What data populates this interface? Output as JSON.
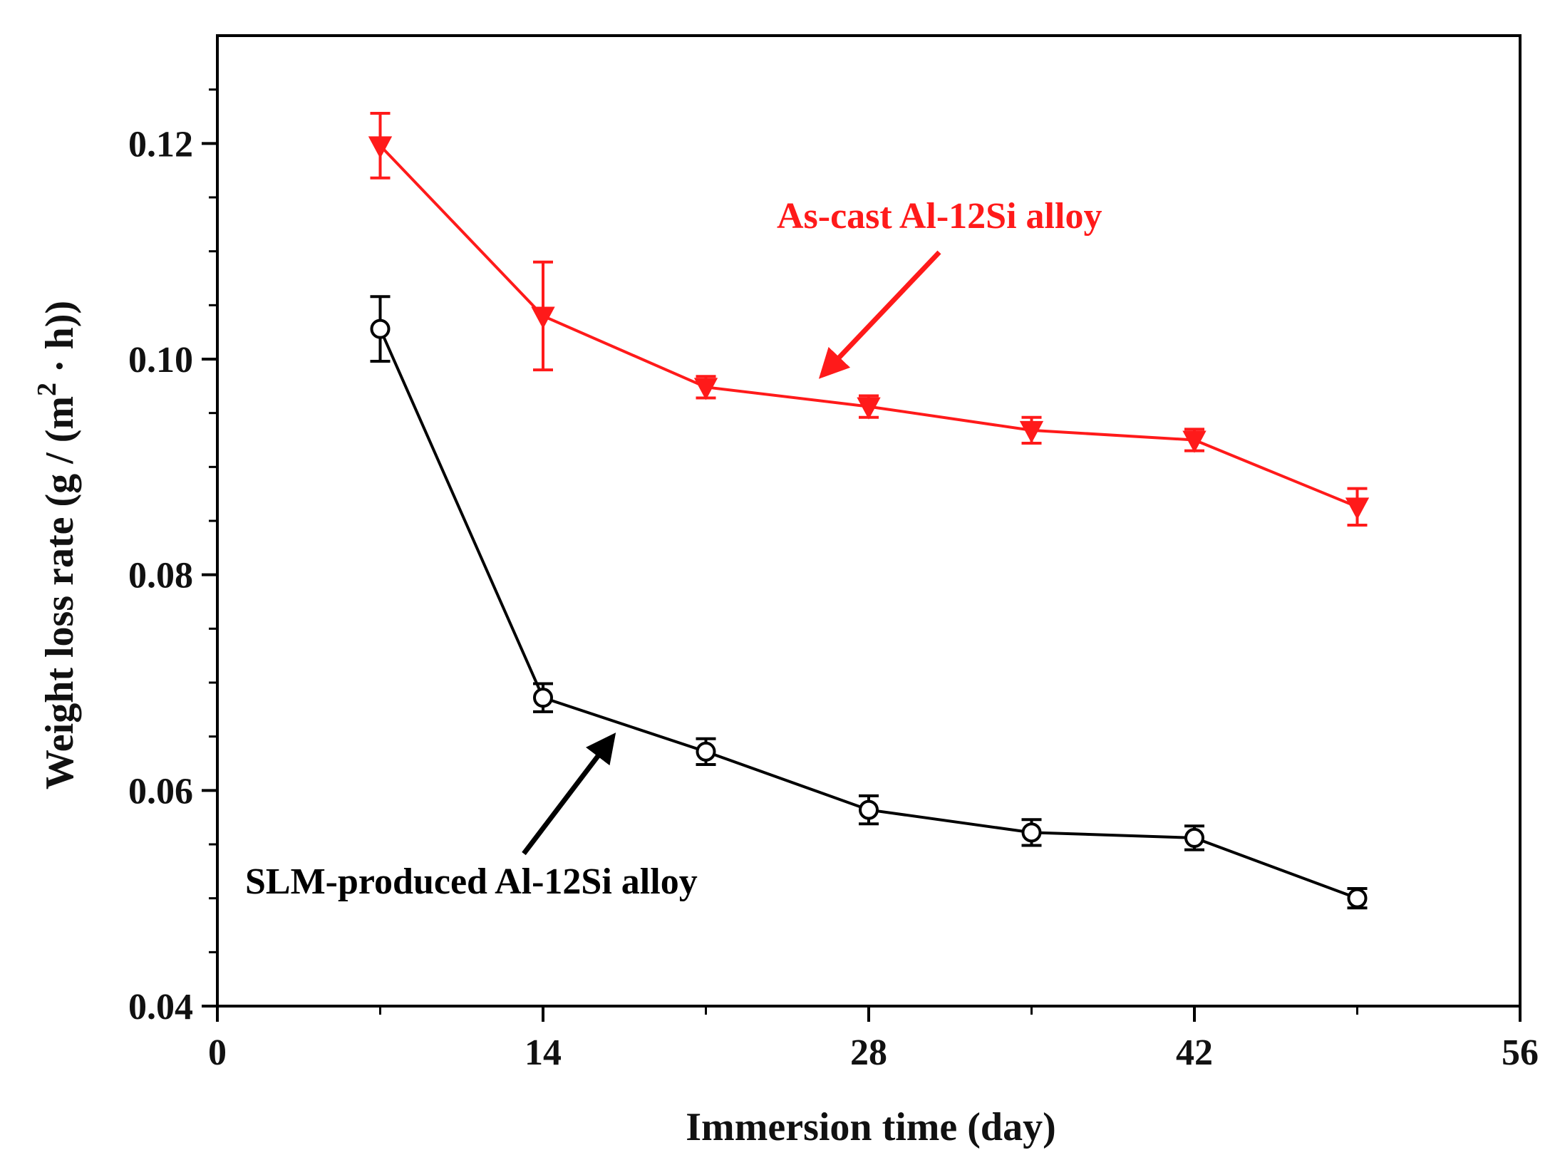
{
  "chart_data": {
    "type": "line",
    "title": "",
    "xlabel": "Immersion time (day)",
    "ylabel": "Weight loss rate (g / (m² · h))",
    "ylabel_parts": {
      "prefix": "Weight loss rate ",
      "unit_start": "(g / (m",
      "superscript": "2",
      "unit_end": " · h))"
    },
    "xlim": [
      0,
      56
    ],
    "ylim": [
      0.04,
      0.13
    ],
    "xticks": [
      0,
      14,
      28,
      42,
      56
    ],
    "xtick_labels": [
      "0",
      "14",
      "28",
      "42",
      "56"
    ],
    "yticks": [
      0.04,
      0.06,
      0.08,
      0.1,
      0.12
    ],
    "ytick_labels": [
      "0.04",
      "0.06",
      "0.08",
      "0.10",
      "0.12"
    ],
    "x_minor_step": 7,
    "y_minor_step": 0.005,
    "grid": false,
    "series": [
      {
        "name": "As-cast Al-12Si alloy",
        "color": "#ff1a1a",
        "marker": "filled-down-triangle",
        "x": [
          7,
          14,
          21,
          28,
          35,
          42,
          49
        ],
        "y": [
          0.1198,
          0.104,
          0.0974,
          0.0956,
          0.0934,
          0.0925,
          0.0863
        ],
        "err": [
          0.003,
          0.005,
          0.001,
          0.001,
          0.0012,
          0.001,
          0.0017
        ]
      },
      {
        "name": "SLM-produced Al-12Si alloy",
        "color": "#000000",
        "marker": "open-circle",
        "x": [
          7,
          14,
          21,
          28,
          35,
          42,
          49
        ],
        "y": [
          0.1028,
          0.0686,
          0.0636,
          0.0582,
          0.0561,
          0.0556,
          0.05
        ],
        "err": [
          0.003,
          0.0013,
          0.0012,
          0.0013,
          0.0012,
          0.0011,
          0.0009
        ]
      }
    ],
    "annotations": [
      {
        "text": "As-cast Al-12Si alloy",
        "color": "#ff1a1a",
        "series_index": 0,
        "arrow_to": [
          26,
          0.0985
        ]
      },
      {
        "text": "SLM-produced Al-12Si alloy",
        "color": "#000000",
        "series_index": 1,
        "arrow_to": [
          17,
          0.065
        ]
      }
    ]
  }
}
